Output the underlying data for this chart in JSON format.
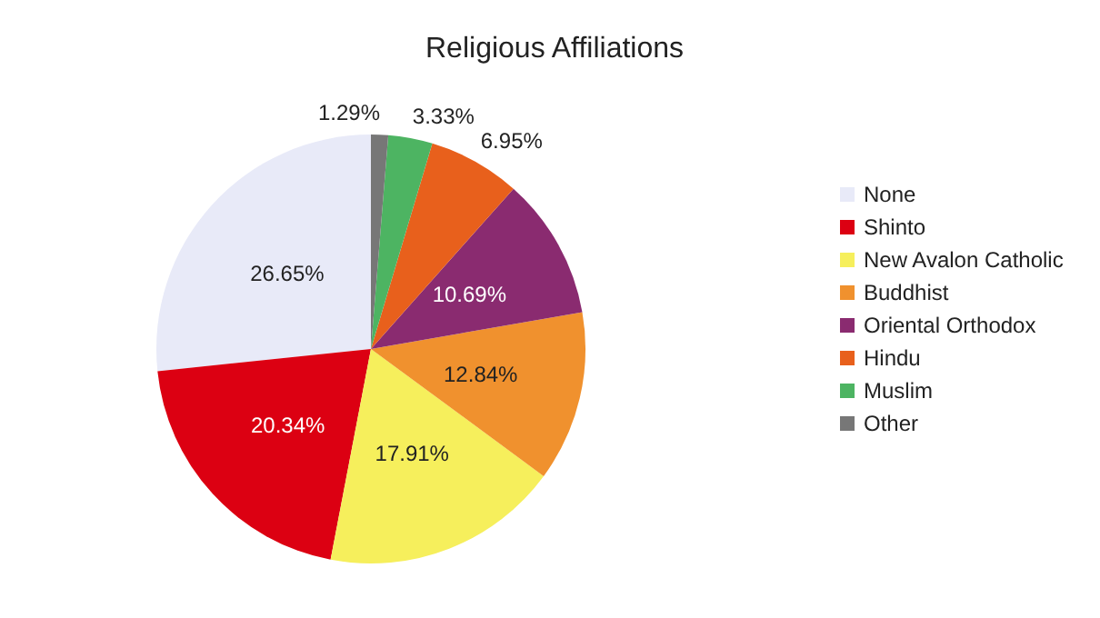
{
  "chart_data": {
    "type": "pie",
    "title": "Religious Affiliations",
    "categories": [
      "None",
      "Shinto",
      "New Avalon Catholic",
      "Buddhist",
      "Oriental Orthodox",
      "Hindu",
      "Muslim",
      "Other"
    ],
    "values": [
      26.65,
      20.34,
      17.91,
      12.84,
      10.69,
      6.95,
      3.33,
      1.29
    ],
    "value_labels": [
      "26.65%",
      "20.34%",
      "17.91%",
      "12.84%",
      "10.69%",
      "6.95%",
      "3.33%",
      "1.29%"
    ],
    "colors": [
      "#e8eaf8",
      "#dc0012",
      "#f6ef5c",
      "#f0912e",
      "#8a2b70",
      "#e8601c",
      "#4db462",
      "#777777"
    ],
    "legend": "right"
  }
}
